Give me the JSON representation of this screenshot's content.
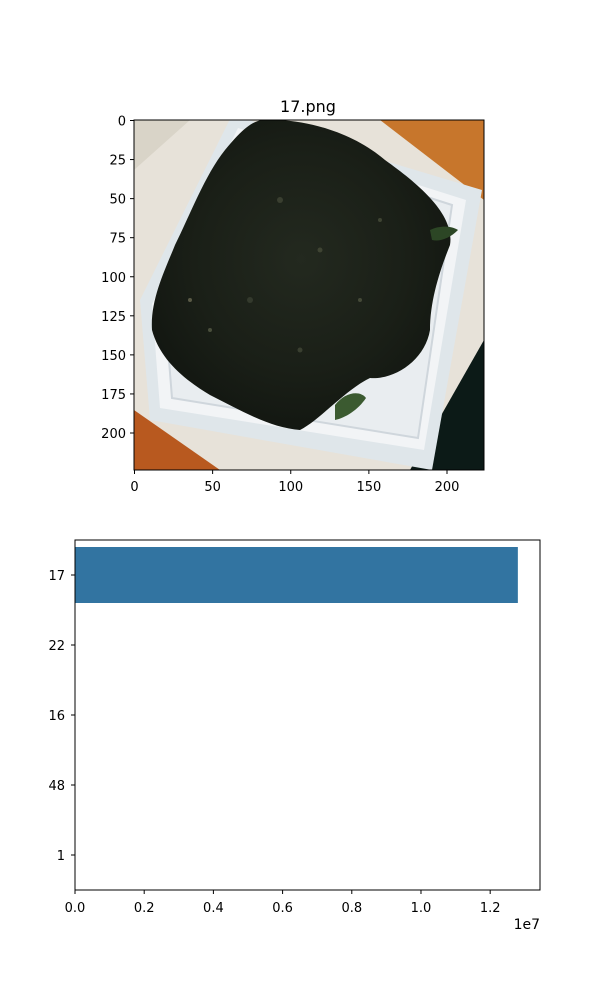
{
  "chart_data": [
    {
      "type": "image",
      "title": "17.png",
      "image_description": "Dark green-black seaweed flakes inside a white square plastic tray, tilted diagonally, on an orange/white background",
      "x_ticks": [
        0,
        50,
        100,
        150,
        200
      ],
      "y_ticks": [
        0,
        25,
        50,
        75,
        100,
        125,
        150,
        175,
        200
      ],
      "xlim": [
        0,
        224
      ],
      "ylim": [
        224,
        0
      ]
    },
    {
      "type": "bar",
      "orientation": "horizontal",
      "categories": [
        "17",
        "22",
        "16",
        "48",
        "1"
      ],
      "values": [
        12800000,
        0,
        0,
        0,
        0
      ],
      "xlim": [
        0,
        13440000
      ],
      "x_ticks": [
        "0.0",
        "0.2",
        "0.4",
        "0.6",
        "0.8",
        "1.0",
        "1.2"
      ],
      "x_tick_values": [
        0,
        2000000,
        4000000,
        6000000,
        8000000,
        10000000,
        12000000
      ],
      "offset_label": "1e7",
      "bar_color": "#3274a1",
      "grid": false,
      "title": "",
      "xlabel": "",
      "ylabel": ""
    }
  ]
}
